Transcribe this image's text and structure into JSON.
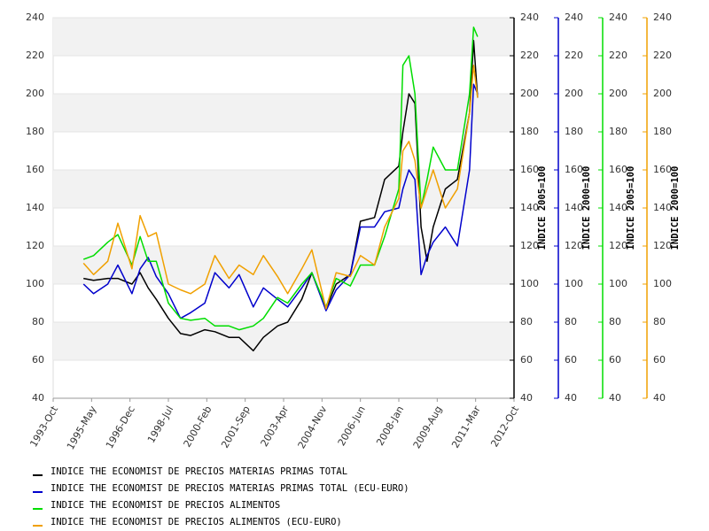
{
  "chart_data": {
    "type": "line",
    "x": [
      "1995-Jan",
      "1995-Jun",
      "1996-Jan",
      "1996-Jun",
      "1997-Jan",
      "1997-May",
      "1997-Sep",
      "1998-Jan",
      "1998-Jul",
      "1999-Jan",
      "1999-Jun",
      "2000-Jan",
      "2000-Jun",
      "2001-Jan",
      "2001-Jun",
      "2002-Jan",
      "2002-Jun",
      "2003-Jan",
      "2003-Jun",
      "2004-Jan",
      "2004-Jun",
      "2005-Jan",
      "2005-Jun",
      "2006-Jan",
      "2006-Jun",
      "2007-Jan",
      "2007-Jun",
      "2008-Jan",
      "2008-Mar",
      "2008-Jun",
      "2008-Sep",
      "2008-Dec",
      "2009-Mar",
      "2009-Jun",
      "2009-Dec",
      "2010-Jun",
      "2010-Dec",
      "2011-Feb",
      "2011-Apr"
    ],
    "xlim": [
      "1993-Oct",
      "2012-Oct"
    ],
    "xticks": [
      "1993-Oct",
      "1995-May",
      "1996-Dec",
      "1998-Jul",
      "2000-Feb",
      "2001-Sep",
      "2003-Apr",
      "2004-Nov",
      "2006-Jun",
      "2008-Jan",
      "2009-Aug",
      "2011-Mar",
      "2012-Oct"
    ],
    "ylim": [
      40,
      240
    ],
    "yticks": [
      40,
      60,
      80,
      100,
      120,
      140,
      160,
      180,
      200,
      220,
      240
    ],
    "grid": true,
    "right_axes": [
      {
        "title": "INDICE 2005=100",
        "color": "#000000",
        "ylim": [
          40,
          240
        ],
        "yticks": [
          40,
          60,
          80,
          100,
          120,
          140,
          160,
          180,
          200,
          220,
          240
        ]
      },
      {
        "title": "INDICE 2000=100",
        "color": "#0000cc",
        "ylim": [
          40,
          240
        ],
        "yticks": [
          40,
          60,
          80,
          100,
          120,
          140,
          160,
          180,
          200,
          220,
          240
        ]
      },
      {
        "title": "INDICE 2005=100",
        "color": "#00dd00",
        "ylim": [
          40,
          240
        ],
        "yticks": [
          40,
          60,
          80,
          100,
          120,
          140,
          160,
          180,
          200,
          220,
          240
        ]
      },
      {
        "title": "INDICE 2000=100",
        "color": "#f0a000",
        "ylim": [
          40,
          240
        ],
        "yticks": [
          40,
          60,
          80,
          100,
          120,
          140,
          160,
          180,
          200,
          220,
          240
        ]
      }
    ],
    "series": [
      {
        "name": "INDICE THE ECONOMIST DE PRECIOS MATERIAS PRIMAS TOTAL",
        "color": "#000000",
        "axis": 0,
        "values": [
          103,
          102,
          103,
          103,
          100,
          106,
          98,
          92,
          82,
          74,
          73,
          76,
          75,
          72,
          72,
          65,
          72,
          78,
          80,
          92,
          106,
          87,
          100,
          105,
          133,
          135,
          155,
          162,
          180,
          200,
          195,
          130,
          112,
          130,
          150,
          155,
          190,
          228,
          198
        ]
      },
      {
        "name": "INDICE THE ECONOMIST DE PRECIOS MATERIAS PRIMAS TOTAL (ECU-EURO)",
        "color": "#0000cc",
        "axis": 1,
        "values": [
          100,
          95,
          100,
          110,
          95,
          108,
          114,
          104,
          95,
          82,
          85,
          90,
          106,
          98,
          105,
          88,
          98,
          92,
          88,
          98,
          106,
          86,
          97,
          105,
          130,
          130,
          138,
          140,
          150,
          160,
          155,
          105,
          115,
          122,
          130,
          120,
          160,
          205,
          200
        ]
      },
      {
        "name": "INDICE THE ECONOMIST DE PRECIOS ALIMENTOS",
        "color": "#00dd00",
        "axis": 2,
        "values": [
          113,
          115,
          122,
          126,
          110,
          125,
          112,
          112,
          90,
          82,
          81,
          82,
          78,
          78,
          76,
          78,
          82,
          93,
          90,
          100,
          106,
          88,
          103,
          99,
          110,
          110,
          125,
          150,
          215,
          220,
          200,
          140,
          155,
          172,
          160,
          160,
          200,
          235,
          230
        ]
      },
      {
        "name": "INDICE THE ECONOMIST DE PRECIOS ALIMENTOS (ECU-EURO)",
        "color": "#f0a000",
        "axis": 3,
        "values": [
          111,
          105,
          112,
          132,
          108,
          136,
          125,
          127,
          100,
          97,
          95,
          100,
          115,
          103,
          110,
          105,
          115,
          104,
          95,
          108,
          118,
          87,
          106,
          104,
          115,
          110,
          130,
          145,
          170,
          175,
          165,
          140,
          150,
          160,
          140,
          150,
          190,
          215,
          198
        ]
      }
    ]
  }
}
